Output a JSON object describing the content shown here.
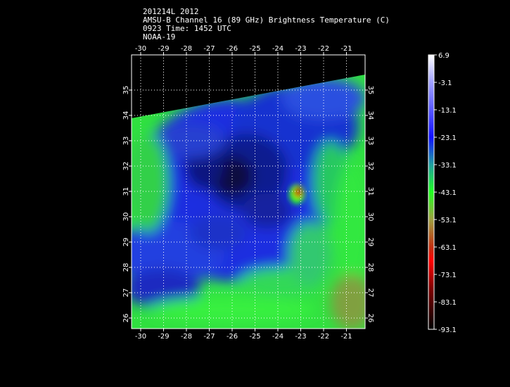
{
  "header": {
    "line1": "201214L 2012",
    "line2": "AMSU-B Channel 16 (89 GHz) Brightness Temperature (C)",
    "line3": "0923 Time: 1452 UTC",
    "line4": "NOAA-19"
  },
  "map": {
    "lon_ticks": [
      "-30",
      "-29",
      "-28",
      "-27",
      "-26",
      "-25",
      "-24",
      "-23",
      "-22",
      "-21"
    ],
    "lat_ticks": [
      "26",
      "27",
      "28",
      "29",
      "30",
      "31",
      "32",
      "33",
      "34",
      "35"
    ]
  },
  "colorbar": {
    "labels": [
      "6.9",
      "-3.1",
      "-13.1",
      "-23.1",
      "-33.1",
      "-43.1",
      "-53.1",
      "-63.1",
      "-73.1",
      "-83.1",
      "-93.1"
    ],
    "colors": {
      "top": "#ffffff",
      "light_blue": "#a0a0ff",
      "blue": "#1010ff",
      "teal": "#20a0a0",
      "green": "#20ff20",
      "olive": "#a0a040",
      "red": "#ff0000",
      "dark_red": "#600000",
      "bottom": "#000000"
    }
  }
}
